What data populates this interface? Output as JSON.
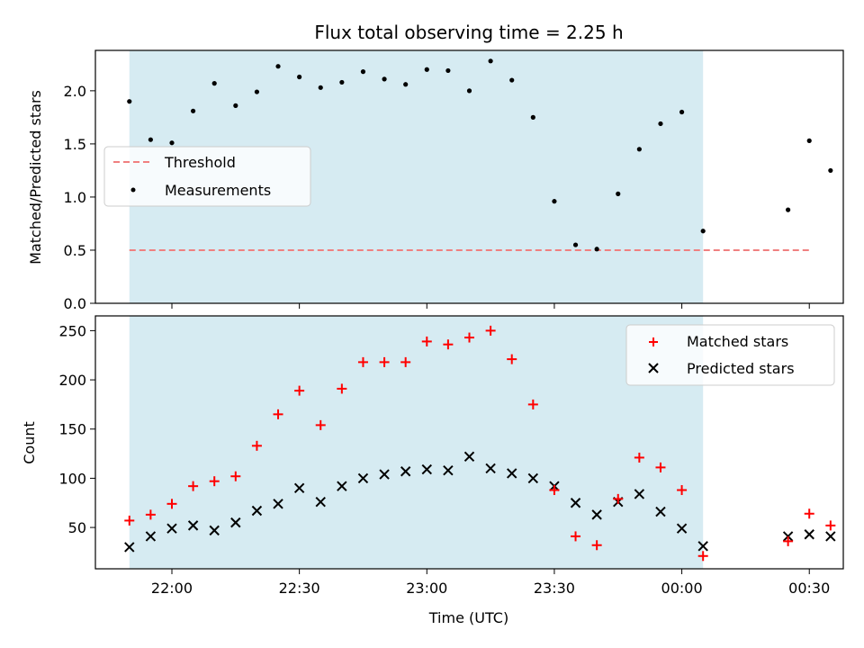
{
  "chart_data": {
    "title": "Flux total observing time = 2.25 h",
    "xlabel": "Time (UTC)",
    "x_tick_labels": [
      "22:00",
      "22:30",
      "23:00",
      "23:30",
      "00:00",
      "00:30"
    ],
    "x_ticks": [
      1320,
      1350,
      1380,
      1410,
      1440,
      1470
    ],
    "xlim": [
      1302,
      1478
    ],
    "shaded_span": [
      1310,
      1445
    ],
    "shade_color": "#add8e6",
    "top": {
      "type": "scatter",
      "ylabel": "Matched/Predicted stars",
      "ylim": [
        0,
        2.38
      ],
      "yticks": [
        0.0,
        0.5,
        1.0,
        1.5,
        2.0
      ],
      "ytick_labels": [
        "0.0",
        "0.5",
        "1.0",
        "1.5",
        "2.0"
      ],
      "threshold": {
        "name": "Threshold",
        "y": 0.5,
        "x_range": [
          1310,
          1470
        ],
        "color": "#f08080"
      },
      "measurements": {
        "name": "Measurements",
        "color": "#000000",
        "x": [
          1310,
          1315,
          1320,
          1325,
          1330,
          1335,
          1340,
          1345,
          1350,
          1355,
          1360,
          1365,
          1370,
          1375,
          1380,
          1385,
          1390,
          1395,
          1400,
          1405,
          1410,
          1415,
          1420,
          1425,
          1430,
          1435,
          1440,
          1445,
          1465,
          1470,
          1475
        ],
        "y": [
          1.9,
          1.54,
          1.51,
          1.81,
          2.07,
          1.86,
          1.99,
          2.23,
          2.13,
          2.03,
          2.08,
          2.18,
          2.11,
          2.06,
          2.2,
          2.19,
          2.0,
          2.28,
          2.1,
          1.75,
          0.96,
          0.55,
          0.51,
          1.03,
          1.45,
          1.69,
          1.8,
          0.68,
          0.88,
          1.53,
          1.25
        ]
      },
      "legend": {
        "placement": "center-left",
        "entries": [
          "Threshold",
          "Measurements"
        ]
      }
    },
    "bottom": {
      "type": "scatter",
      "ylabel": "Count",
      "ylim": [
        8,
        265
      ],
      "yticks": [
        50,
        100,
        150,
        200,
        250
      ],
      "ytick_labels": [
        "50",
        "100",
        "150",
        "200",
        "250"
      ],
      "series": [
        {
          "name": "Matched stars",
          "marker": "plus",
          "color": "#ff0000",
          "x": [
            1310,
            1315,
            1320,
            1325,
            1330,
            1335,
            1340,
            1345,
            1350,
            1355,
            1360,
            1365,
            1370,
            1375,
            1380,
            1385,
            1390,
            1395,
            1400,
            1405,
            1410,
            1415,
            1420,
            1425,
            1430,
            1435,
            1440,
            1445,
            1465,
            1470,
            1475
          ],
          "values": [
            57,
            63,
            74,
            92,
            97,
            102,
            133,
            165,
            189,
            154,
            191,
            218,
            218,
            218,
            239,
            236,
            243,
            250,
            221,
            175,
            88,
            41,
            32,
            79,
            121,
            111,
            88,
            21,
            36,
            64,
            52
          ]
        },
        {
          "name": "Predicted stars",
          "marker": "x",
          "color": "#000000",
          "x": [
            1310,
            1315,
            1320,
            1325,
            1330,
            1335,
            1340,
            1345,
            1350,
            1355,
            1360,
            1365,
            1370,
            1375,
            1380,
            1385,
            1390,
            1395,
            1400,
            1405,
            1410,
            1415,
            1420,
            1425,
            1430,
            1435,
            1440,
            1445,
            1465,
            1470,
            1475
          ],
          "values": [
            30,
            41,
            49,
            52,
            47,
            55,
            67,
            74,
            90,
            76,
            92,
            100,
            104,
            107,
            109,
            108,
            122,
            110,
            105,
            100,
            92,
            75,
            63,
            76,
            84,
            66,
            49,
            31,
            41,
            43,
            41
          ]
        }
      ],
      "legend": {
        "placement": "top-right",
        "entries": [
          "Matched stars",
          "Predicted stars"
        ]
      }
    }
  }
}
